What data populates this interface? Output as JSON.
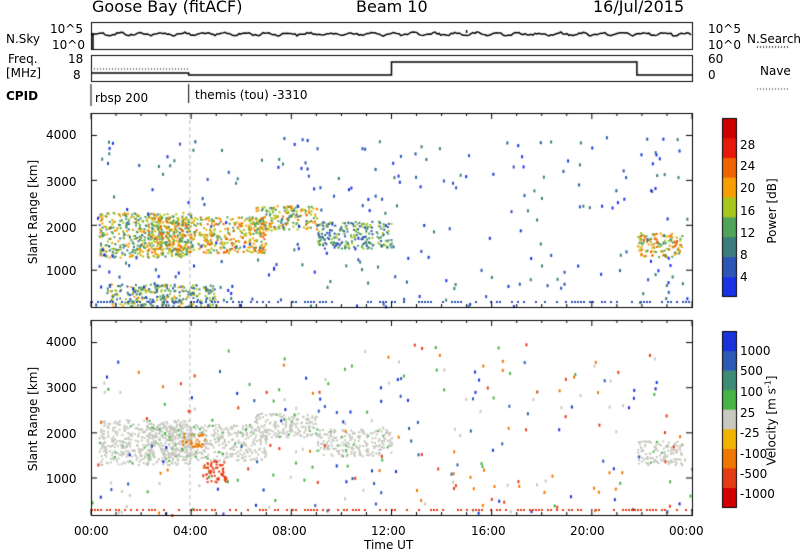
{
  "header": {
    "station": "Goose Bay (fitACF)",
    "beam": "Beam 10",
    "date": "16/Jul/2015"
  },
  "noise_panel": {
    "left_label": "N.Sky",
    "right_label": "N.Search",
    "left_ticks": [
      "10^5",
      "10^0"
    ],
    "right_ticks": [
      "10^5",
      "10^0"
    ]
  },
  "freq_panel": {
    "left_label_1": "Freq.",
    "left_label_2": "[MHz]",
    "left_ticks": [
      "18",
      "8"
    ],
    "right_label": "Nave",
    "right_ticks": [
      "60",
      "0"
    ]
  },
  "cpid": {
    "label": "CPID",
    "segments": [
      {
        "name": "rbsp 200",
        "start_h": 0
      },
      {
        "name": "themis (tou) -3310",
        "start_h": 3.9
      }
    ]
  },
  "axes": {
    "xlabel": "Time UT",
    "xticks": [
      "00:00",
      "04:00",
      "08:00",
      "12:00",
      "16:00",
      "20:00",
      "00:00"
    ],
    "ylabel": "Slant Range [km]",
    "yticks": [
      "4000",
      "3000",
      "2000",
      "1000"
    ]
  },
  "colors": {
    "power_scale": [
      "#1a32e6",
      "#2d55b5",
      "#3c7d7d",
      "#4fa35a",
      "#a6c81e",
      "#f5a000",
      "#f06400",
      "#e61a0a",
      "#cc0000"
    ],
    "velocity_scale": [
      "#1a32dc",
      "#2d5ab4",
      "#3c8c78",
      "#46b446",
      "#c8c8c0",
      "#f0b400",
      "#f07800",
      "#e63c14",
      "#d20000"
    ],
    "ground_scatter": "#c8c8c0"
  },
  "power_colorbar": {
    "label": "Power [dB]",
    "ticks": [
      "28",
      "24",
      "20",
      "16",
      "12",
      "8",
      "4"
    ]
  },
  "velocity_colorbar": {
    "label": "Velocity [m s",
    "label_sup": "-1",
    "label_end": "]",
    "ticks": [
      "1000",
      "500",
      "100",
      "25",
      "-25",
      "-100",
      "-500",
      "-1000"
    ]
  },
  "chart_data": [
    {
      "type": "heatmap",
      "title": "Power",
      "xlabel": "Time UT",
      "ylabel": "Slant Range [km]",
      "xlim_hours": [
        0,
        24
      ],
      "ylim_km": [
        180,
        4500
      ],
      "colorbar": {
        "label": "Power [dB]",
        "range": [
          0,
          30
        ]
      },
      "regions": [
        {
          "t": [
            0.3,
            4.0
          ],
          "r": [
            1300,
            2300
          ],
          "dB": 14
        },
        {
          "t": [
            2.2,
            7.0
          ],
          "r": [
            1400,
            2200
          ],
          "dB": 18
        },
        {
          "t": [
            6.5,
            9.0
          ],
          "r": [
            1900,
            2450
          ],
          "dB": 16
        },
        {
          "t": [
            9.0,
            12.0
          ],
          "r": [
            1500,
            2100
          ],
          "dB": 10
        },
        {
          "t": [
            21.8,
            23.6
          ],
          "r": [
            1300,
            1850
          ],
          "dB": 18
        },
        {
          "t": [
            0.6,
            5.0
          ],
          "r": [
            200,
            700
          ],
          "dB": 12
        }
      ]
    },
    {
      "type": "heatmap",
      "title": "Velocity",
      "xlabel": "Time UT",
      "ylabel": "Slant Range [km]",
      "xlim_hours": [
        0,
        24
      ],
      "ylim_km": [
        180,
        4500
      ],
      "colorbar": {
        "label": "Velocity [m s-1]",
        "range": [
          -1000,
          1000
        ]
      },
      "regions": [
        {
          "t": [
            0.3,
            4.0
          ],
          "r": [
            1300,
            2300
          ],
          "vel": 0,
          "ground_scatter": true
        },
        {
          "t": [
            2.2,
            7.0
          ],
          "r": [
            1400,
            2200
          ],
          "vel": 0,
          "ground_scatter": true
        },
        {
          "t": [
            6.5,
            9.0
          ],
          "r": [
            1900,
            2450
          ],
          "vel": 0,
          "ground_scatter": true
        },
        {
          "t": [
            9.0,
            12.0
          ],
          "r": [
            1500,
            2100
          ],
          "vel": 0,
          "ground_scatter": true
        },
        {
          "t": [
            21.8,
            23.6
          ],
          "r": [
            1300,
            1850
          ],
          "vel": 0,
          "ground_scatter": true
        },
        {
          "t": [
            4.5,
            5.4
          ],
          "r": [
            900,
            1400
          ],
          "vel": -500
        },
        {
          "t": [
            3.6,
            4.6
          ],
          "r": [
            1700,
            2000
          ],
          "vel": -300
        }
      ]
    }
  ]
}
